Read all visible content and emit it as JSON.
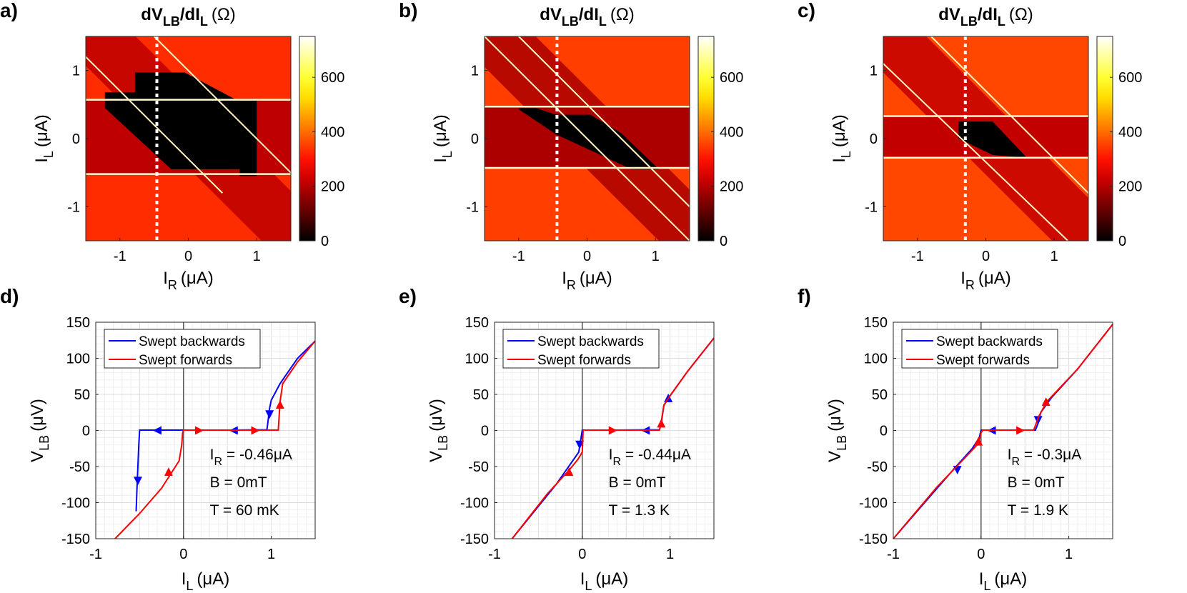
{
  "chart_data": [
    {
      "id": "a",
      "panel_label": "a)",
      "type": "heatmap",
      "title": {
        "main": "dV",
        "sub1": "LB",
        "mid": "/dI",
        "sub2": "L",
        "unit": "(Ω)"
      },
      "xlabel": {
        "main": "I",
        "sub": "R",
        "unit": "(μA)"
      },
      "ylabel": {
        "main": "I",
        "sub": "L",
        "unit": "(μA)"
      },
      "xlim": [
        -1.5,
        1.5
      ],
      "ylim": [
        -1.5,
        1.5
      ],
      "xticks": [
        {
          "v": -1,
          "label": "-1"
        },
        {
          "v": 0,
          "label": "0"
        },
        {
          "v": 1,
          "label": "1"
        }
      ],
      "yticks": [
        {
          "v": -1,
          "label": "-1"
        },
        {
          "v": 0,
          "label": "0"
        },
        {
          "v": 1,
          "label": "1"
        }
      ],
      "colorbar": {
        "range": [
          0,
          750
        ],
        "ticks": [
          {
            "v": 0,
            "label": "0"
          },
          {
            "v": 200,
            "label": "200"
          },
          {
            "v": 400,
            "label": "400"
          },
          {
            "v": 600,
            "label": "600"
          }
        ]
      },
      "cut_line_x": -0.46,
      "upper_edge": 0.57,
      "lower_edge": -0.52,
      "regions": {
        "outside": 330,
        "band": 210
      },
      "band": {
        "x0": 0.15,
        "half_width": 0.58
      },
      "black_polygon": [
        [
          -1.22,
          0.68
        ],
        [
          -0.78,
          0.68
        ],
        [
          -0.78,
          0.97
        ],
        [
          -0.05,
          0.97
        ],
        [
          0.7,
          0.57
        ],
        [
          1.0,
          0.57
        ],
        [
          1.0,
          -0.55
        ],
        [
          0.75,
          -0.55
        ],
        [
          0.75,
          -0.45
        ],
        [
          -0.25,
          -0.45
        ],
        [
          -1.22,
          0.45
        ]
      ],
      "bright_lines": [
        [
          [
            -1.5,
            1.2
          ],
          [
            0.5,
            -0.8
          ]
        ],
        [
          [
            -0.5,
            1.5
          ],
          [
            1.5,
            -0.5
          ]
        ]
      ]
    },
    {
      "id": "b",
      "panel_label": "b)",
      "type": "heatmap",
      "title": {
        "main": "dV",
        "sub1": "LB",
        "mid": "/dI",
        "sub2": "L",
        "unit": "(Ω)"
      },
      "xlabel": {
        "main": "I",
        "sub": "R",
        "unit": "(μA)"
      },
      "ylabel": {
        "main": "I",
        "sub": "L",
        "unit": "(μA)"
      },
      "xlim": [
        -1.5,
        1.5
      ],
      "ylim": [
        -1.5,
        1.5
      ],
      "xticks": [
        {
          "v": -1,
          "label": "-1"
        },
        {
          "v": 0,
          "label": "0"
        },
        {
          "v": 1,
          "label": "1"
        }
      ],
      "yticks": [
        {
          "v": -1,
          "label": "-1"
        },
        {
          "v": 0,
          "label": "0"
        },
        {
          "v": 1,
          "label": "1"
        }
      ],
      "colorbar": {
        "range": [
          0,
          750
        ],
        "ticks": [
          {
            "v": 0,
            "label": "0"
          },
          {
            "v": 200,
            "label": "200"
          },
          {
            "v": 400,
            "label": "400"
          },
          {
            "v": 600,
            "label": "600"
          }
        ]
      },
      "cut_line_x": -0.44,
      "upper_edge": 0.47,
      "lower_edge": -0.43,
      "regions": {
        "outside": 350,
        "band": 190
      },
      "band": {
        "x0": 0.15,
        "half_width": 0.6
      },
      "black_polygon": [
        [
          -1.0,
          0.45
        ],
        [
          -0.75,
          0.45
        ],
        [
          -0.45,
          0.35
        ],
        [
          0.05,
          0.35
        ],
        [
          0.5,
          0.08
        ],
        [
          1.05,
          -0.45
        ],
        [
          0.65,
          -0.45
        ],
        [
          -0.45,
          0.06
        ],
        [
          -1.0,
          0.43
        ]
      ],
      "bright_lines": [
        [
          [
            -1.5,
            1.5
          ],
          [
            1.5,
            -1.5
          ]
        ],
        [
          [
            -1.0,
            1.5
          ],
          [
            1.5,
            -1.0
          ]
        ]
      ]
    },
    {
      "id": "c",
      "panel_label": "c)",
      "type": "heatmap",
      "title": {
        "main": "dV",
        "sub1": "LB",
        "mid": "/dI",
        "sub2": "L",
        "unit": "(Ω)"
      },
      "xlabel": {
        "main": "I",
        "sub": "R",
        "unit": "(μA)"
      },
      "ylabel": {
        "main": "I",
        "sub": "L",
        "unit": "(μA)"
      },
      "xlim": [
        -1.5,
        1.5
      ],
      "ylim": [
        -1.5,
        1.5
      ],
      "xticks": [
        {
          "v": -1,
          "label": "-1"
        },
        {
          "v": 0,
          "label": "0"
        },
        {
          "v": 1,
          "label": "1"
        }
      ],
      "yticks": [
        {
          "v": -1,
          "label": "-1"
        },
        {
          "v": 0,
          "label": "0"
        },
        {
          "v": 1,
          "label": "1"
        }
      ],
      "colorbar": {
        "range": [
          0,
          750
        ],
        "ticks": [
          {
            "v": 0,
            "label": "0"
          },
          {
            "v": 200,
            "label": "200"
          },
          {
            "v": 400,
            "label": "400"
          },
          {
            "v": 600,
            "label": "600"
          }
        ]
      },
      "cut_line_x": -0.3,
      "upper_edge": 0.33,
      "lower_edge": -0.28,
      "regions": {
        "outside": 360,
        "band": 215
      },
      "band": {
        "x0": 0.05,
        "half_width": 0.58
      },
      "black_polygon": [
        [
          -0.4,
          0.25
        ],
        [
          0.1,
          0.25
        ],
        [
          0.6,
          -0.28
        ],
        [
          0.1,
          -0.24
        ],
        [
          -0.4,
          0.0
        ]
      ],
      "bright_lines": [
        [
          [
            -1.5,
            1.1
          ],
          [
            1.2,
            -1.5
          ]
        ],
        [
          [
            -0.8,
            1.5
          ],
          [
            1.5,
            -0.8
          ]
        ]
      ]
    },
    {
      "id": "d",
      "panel_label": "d)",
      "type": "line",
      "xlabel": {
        "main": "I",
        "sub": "L",
        "unit": "(μA)"
      },
      "ylabel": {
        "main": "V",
        "sub": "LB",
        "unit": "(μV)"
      },
      "xlim": [
        -1,
        1.5
      ],
      "ylim": [
        -150,
        150
      ],
      "xticks": [
        {
          "v": -1,
          "label": "-1"
        },
        {
          "v": 0,
          "label": "0"
        },
        {
          "v": 1,
          "label": "1"
        }
      ],
      "yticks": [
        {
          "v": -150,
          "label": "-150"
        },
        {
          "v": -100,
          "label": "-100"
        },
        {
          "v": -50,
          "label": "-50"
        },
        {
          "v": 0,
          "label": "0"
        },
        {
          "v": 50,
          "label": "50"
        },
        {
          "v": 100,
          "label": "100"
        },
        {
          "v": 150,
          "label": "150"
        }
      ],
      "legend": [
        "Swept backwards",
        "Swept forwards"
      ],
      "annotation": {
        "l1_main": "I",
        "l1_sub": "R",
        "l1_val": " = -0.46μA",
        "l2": "B = 0mT",
        "l3": "T = 60 mK"
      },
      "series": [
        {
          "name": "Swept backwards",
          "color": "#0000ff",
          "points": [
            [
              1.5,
              124
            ],
            [
              1.3,
              100
            ],
            [
              1.1,
              65
            ],
            [
              1.0,
              42
            ],
            [
              0.98,
              30
            ],
            [
              0.96,
              10
            ],
            [
              0.95,
              1
            ],
            [
              0.5,
              0.5
            ],
            [
              0.0,
              0.5
            ],
            [
              -0.5,
              0.5
            ],
            [
              -0.51,
              -20
            ],
            [
              -0.53,
              -80
            ],
            [
              -0.54,
              -112
            ]
          ],
          "arrows": [
            [
              0.98,
              22,
              "down"
            ],
            [
              0.57,
              0,
              "left"
            ],
            [
              -0.3,
              0,
              "left"
            ],
            [
              -0.52,
              -70,
              "down"
            ]
          ]
        },
        {
          "name": "Swept forwards",
          "color": "#ff0000",
          "points": [
            [
              -0.78,
              -150
            ],
            [
              -0.5,
              -115
            ],
            [
              -0.25,
              -80
            ],
            [
              -0.05,
              -42
            ],
            [
              -0.02,
              -20
            ],
            [
              -0.01,
              -3
            ],
            [
              0.0,
              0.5
            ],
            [
              0.5,
              0.5
            ],
            [
              1.08,
              0.5
            ],
            [
              1.1,
              40
            ],
            [
              1.13,
              65
            ],
            [
              1.3,
              95
            ],
            [
              1.5,
              124
            ]
          ],
          "arrows": [
            [
              -0.17,
              -57,
              "up"
            ],
            [
              0.18,
              0,
              "right"
            ],
            [
              0.82,
              0,
              "right"
            ],
            [
              1.1,
              36,
              "up"
            ]
          ]
        }
      ]
    },
    {
      "id": "e",
      "panel_label": "e)",
      "type": "line",
      "xlabel": {
        "main": "I",
        "sub": "L",
        "unit": "(μA)"
      },
      "ylabel": {
        "main": "V",
        "sub": "LB",
        "unit": "(μV)"
      },
      "xlim": [
        -1,
        1.5
      ],
      "ylim": [
        -150,
        150
      ],
      "xticks": [
        {
          "v": -1,
          "label": "-1"
        },
        {
          "v": 0,
          "label": "0"
        },
        {
          "v": 1,
          "label": "1"
        }
      ],
      "yticks": [
        {
          "v": -150,
          "label": "-150"
        },
        {
          "v": -100,
          "label": "-100"
        },
        {
          "v": -50,
          "label": "-50"
        },
        {
          "v": 0,
          "label": "0"
        },
        {
          "v": 50,
          "label": "50"
        },
        {
          "v": 100,
          "label": "100"
        },
        {
          "v": 150,
          "label": "150"
        }
      ],
      "legend": [
        "Swept backwards",
        "Swept forwards"
      ],
      "annotation": {
        "l1_main": "I",
        "l1_sub": "R",
        "l1_val": " = -0.44μA",
        "l2": "B = 0mT",
        "l3": "T = 1.3 K"
      },
      "series": [
        {
          "name": "Swept backwards",
          "color": "#0000ff",
          "points": [
            [
              1.5,
              128
            ],
            [
              1.2,
              82
            ],
            [
              1.0,
              48
            ],
            [
              0.93,
              35
            ],
            [
              0.9,
              10
            ],
            [
              0.88,
              1
            ],
            [
              0.4,
              0.5
            ],
            [
              0.0,
              0.5
            ],
            [
              -0.02,
              -15
            ],
            [
              -0.04,
              -30
            ],
            [
              -0.3,
              -75
            ],
            [
              -0.8,
              -150
            ]
          ],
          "arrows": [
            [
              0.98,
              45,
              "up"
            ],
            [
              0.72,
              0,
              "left"
            ],
            [
              -0.03,
              -20,
              "down"
            ]
          ]
        },
        {
          "name": "Swept forwards",
          "color": "#ff0000",
          "points": [
            [
              -0.8,
              -150
            ],
            [
              -0.4,
              -88
            ],
            [
              -0.15,
              -55
            ],
            [
              -0.05,
              -40
            ],
            [
              0.0,
              -30
            ],
            [
              0.01,
              0.5
            ],
            [
              0.5,
              0.5
            ],
            [
              0.88,
              0.5
            ],
            [
              0.9,
              12
            ],
            [
              0.93,
              35
            ],
            [
              1.0,
              48
            ],
            [
              1.2,
              82
            ],
            [
              1.5,
              128
            ]
          ],
          "arrows": [
            [
              -0.15,
              -57,
              "up"
            ],
            [
              0.35,
              0,
              "right"
            ],
            [
              0.9,
              10,
              "up"
            ]
          ]
        }
      ]
    },
    {
      "id": "f",
      "panel_label": "f)",
      "type": "line",
      "xlabel": {
        "main": "I",
        "sub": "L",
        "unit": "(μA)"
      },
      "ylabel": {
        "main": "V",
        "sub": "LB",
        "unit": "(μV)"
      },
      "xlim": [
        -1,
        1.5
      ],
      "ylim": [
        -150,
        150
      ],
      "xticks": [
        {
          "v": -1,
          "label": "-1"
        },
        {
          "v": 0,
          "label": "0"
        },
        {
          "v": 1,
          "label": "1"
        }
      ],
      "yticks": [
        {
          "v": -150,
          "label": "-150"
        },
        {
          "v": -100,
          "label": "-100"
        },
        {
          "v": -50,
          "label": "-50"
        },
        {
          "v": 0,
          "label": "0"
        },
        {
          "v": 50,
          "label": "50"
        },
        {
          "v": 100,
          "label": "100"
        },
        {
          "v": 150,
          "label": "150"
        }
      ],
      "legend": [
        "Swept backwards",
        "Swept forwards"
      ],
      "annotation": {
        "l1_main": "I",
        "l1_sub": "R",
        "l1_val": " = -0.3μA",
        "l2": "B = 0mT",
        "l3": "T = 1.9 K"
      },
      "series": [
        {
          "name": "Swept backwards",
          "color": "#0000ff",
          "points": [
            [
              1.5,
              147
            ],
            [
              1.1,
              85
            ],
            [
              0.8,
              45
            ],
            [
              0.68,
              25
            ],
            [
              0.65,
              10
            ],
            [
              0.62,
              0.5
            ],
            [
              0.3,
              0.5
            ],
            [
              0.0,
              0.5
            ],
            [
              -0.02,
              -10
            ],
            [
              -0.1,
              -25
            ],
            [
              -0.3,
              -52
            ],
            [
              -1.0,
              -150
            ]
          ],
          "arrows": [
            [
              0.65,
              14,
              "down"
            ],
            [
              0.12,
              0,
              "left"
            ],
            [
              -0.27,
              -55,
              "down"
            ]
          ]
        },
        {
          "name": "Swept forwards",
          "color": "#ff0000",
          "points": [
            [
              -1.0,
              -150
            ],
            [
              -0.5,
              -78
            ],
            [
              -0.2,
              -40
            ],
            [
              -0.03,
              -18
            ],
            [
              0.0,
              -3
            ],
            [
              0.02,
              0.5
            ],
            [
              0.4,
              0.5
            ],
            [
              0.6,
              0.5
            ],
            [
              0.66,
              20
            ],
            [
              0.75,
              40
            ],
            [
              1.1,
              85
            ],
            [
              1.5,
              147
            ]
          ],
          "arrows": [
            [
              -0.03,
              -15,
              "up"
            ],
            [
              0.45,
              0,
              "right"
            ],
            [
              0.74,
              40,
              "up"
            ]
          ]
        }
      ]
    }
  ]
}
